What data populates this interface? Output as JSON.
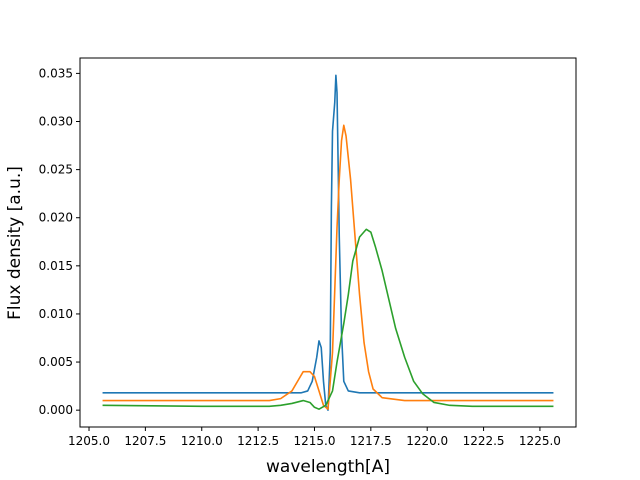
{
  "chart_data": {
    "type": "line",
    "title": "",
    "xlabel": "wavelength[A]",
    "ylabel": "Flux density [a.u.]",
    "xlim": [
      1204.6,
      1226.6
    ],
    "ylim": [
      -0.00175,
      0.0366
    ],
    "x_ticks": [
      1205.0,
      1207.5,
      1210.0,
      1212.5,
      1215.0,
      1217.5,
      1220.0,
      1222.5,
      1225.0
    ],
    "x_tick_labels": [
      "1205.0",
      "1207.5",
      "1210.0",
      "1212.5",
      "1215.0",
      "1217.5",
      "1220.0",
      "1222.5",
      "1225.0"
    ],
    "y_ticks": [
      0.0,
      0.005,
      0.01,
      0.015,
      0.02,
      0.025,
      0.03,
      0.035
    ],
    "y_tick_labels": [
      "0.000",
      "0.005",
      "0.010",
      "0.015",
      "0.020",
      "0.025",
      "0.030",
      "0.035"
    ],
    "grid": false,
    "legend": "none",
    "series": [
      {
        "color": "#1f77b4",
        "points": [
          [
            1205.6,
            0.0018
          ],
          [
            1210.0,
            0.0018
          ],
          [
            1213.0,
            0.0018
          ],
          [
            1214.4,
            0.0018
          ],
          [
            1214.7,
            0.002
          ],
          [
            1214.9,
            0.003
          ],
          [
            1215.1,
            0.0055
          ],
          [
            1215.2,
            0.0072
          ],
          [
            1215.3,
            0.0065
          ],
          [
            1215.4,
            0.003
          ],
          [
            1215.5,
            0.0005
          ],
          [
            1215.6,
            0.0
          ],
          [
            1215.7,
            0.006
          ],
          [
            1215.75,
            0.021
          ],
          [
            1215.8,
            0.029
          ],
          [
            1215.9,
            0.032
          ],
          [
            1215.95,
            0.0348
          ],
          [
            1216.0,
            0.033
          ],
          [
            1216.1,
            0.018
          ],
          [
            1216.2,
            0.008
          ],
          [
            1216.3,
            0.003
          ],
          [
            1216.5,
            0.002
          ],
          [
            1217.0,
            0.0018
          ],
          [
            1220.0,
            0.0018
          ],
          [
            1225.6,
            0.0018
          ]
        ]
      },
      {
        "color": "#ff7f0e",
        "points": [
          [
            1205.6,
            0.001
          ],
          [
            1210.0,
            0.001
          ],
          [
            1213.0,
            0.001
          ],
          [
            1213.5,
            0.0012
          ],
          [
            1214.0,
            0.002
          ],
          [
            1214.3,
            0.0032
          ],
          [
            1214.5,
            0.004
          ],
          [
            1214.8,
            0.004
          ],
          [
            1215.0,
            0.0035
          ],
          [
            1215.2,
            0.002
          ],
          [
            1215.4,
            0.0005
          ],
          [
            1215.6,
            0.0001
          ],
          [
            1215.8,
            0.006
          ],
          [
            1216.0,
            0.019
          ],
          [
            1216.1,
            0.024
          ],
          [
            1216.2,
            0.028
          ],
          [
            1216.3,
            0.0296
          ],
          [
            1216.4,
            0.0285
          ],
          [
            1216.6,
            0.024
          ],
          [
            1216.8,
            0.018
          ],
          [
            1217.0,
            0.012
          ],
          [
            1217.2,
            0.007
          ],
          [
            1217.4,
            0.004
          ],
          [
            1217.6,
            0.0022
          ],
          [
            1218.0,
            0.0013
          ],
          [
            1219.0,
            0.001
          ],
          [
            1225.6,
            0.001
          ]
        ]
      },
      {
        "color": "#2ca02c",
        "points": [
          [
            1205.6,
            0.0005
          ],
          [
            1210.0,
            0.0004
          ],
          [
            1213.0,
            0.0004
          ],
          [
            1213.5,
            0.0005
          ],
          [
            1214.0,
            0.0007
          ],
          [
            1214.5,
            0.001
          ],
          [
            1214.8,
            0.0008
          ],
          [
            1215.0,
            0.0003
          ],
          [
            1215.2,
            0.0001
          ],
          [
            1215.5,
            0.0005
          ],
          [
            1215.8,
            0.002
          ],
          [
            1216.0,
            0.005
          ],
          [
            1216.3,
            0.009
          ],
          [
            1216.5,
            0.012
          ],
          [
            1216.7,
            0.0155
          ],
          [
            1217.0,
            0.018
          ],
          [
            1217.3,
            0.0188
          ],
          [
            1217.5,
            0.0185
          ],
          [
            1217.7,
            0.017
          ],
          [
            1218.0,
            0.0145
          ],
          [
            1218.3,
            0.0115
          ],
          [
            1218.6,
            0.0085
          ],
          [
            1219.0,
            0.0055
          ],
          [
            1219.4,
            0.003
          ],
          [
            1219.8,
            0.0017
          ],
          [
            1220.3,
            0.0008
          ],
          [
            1221.0,
            0.0005
          ],
          [
            1222.0,
            0.0004
          ],
          [
            1225.6,
            0.0004
          ]
        ]
      }
    ]
  }
}
